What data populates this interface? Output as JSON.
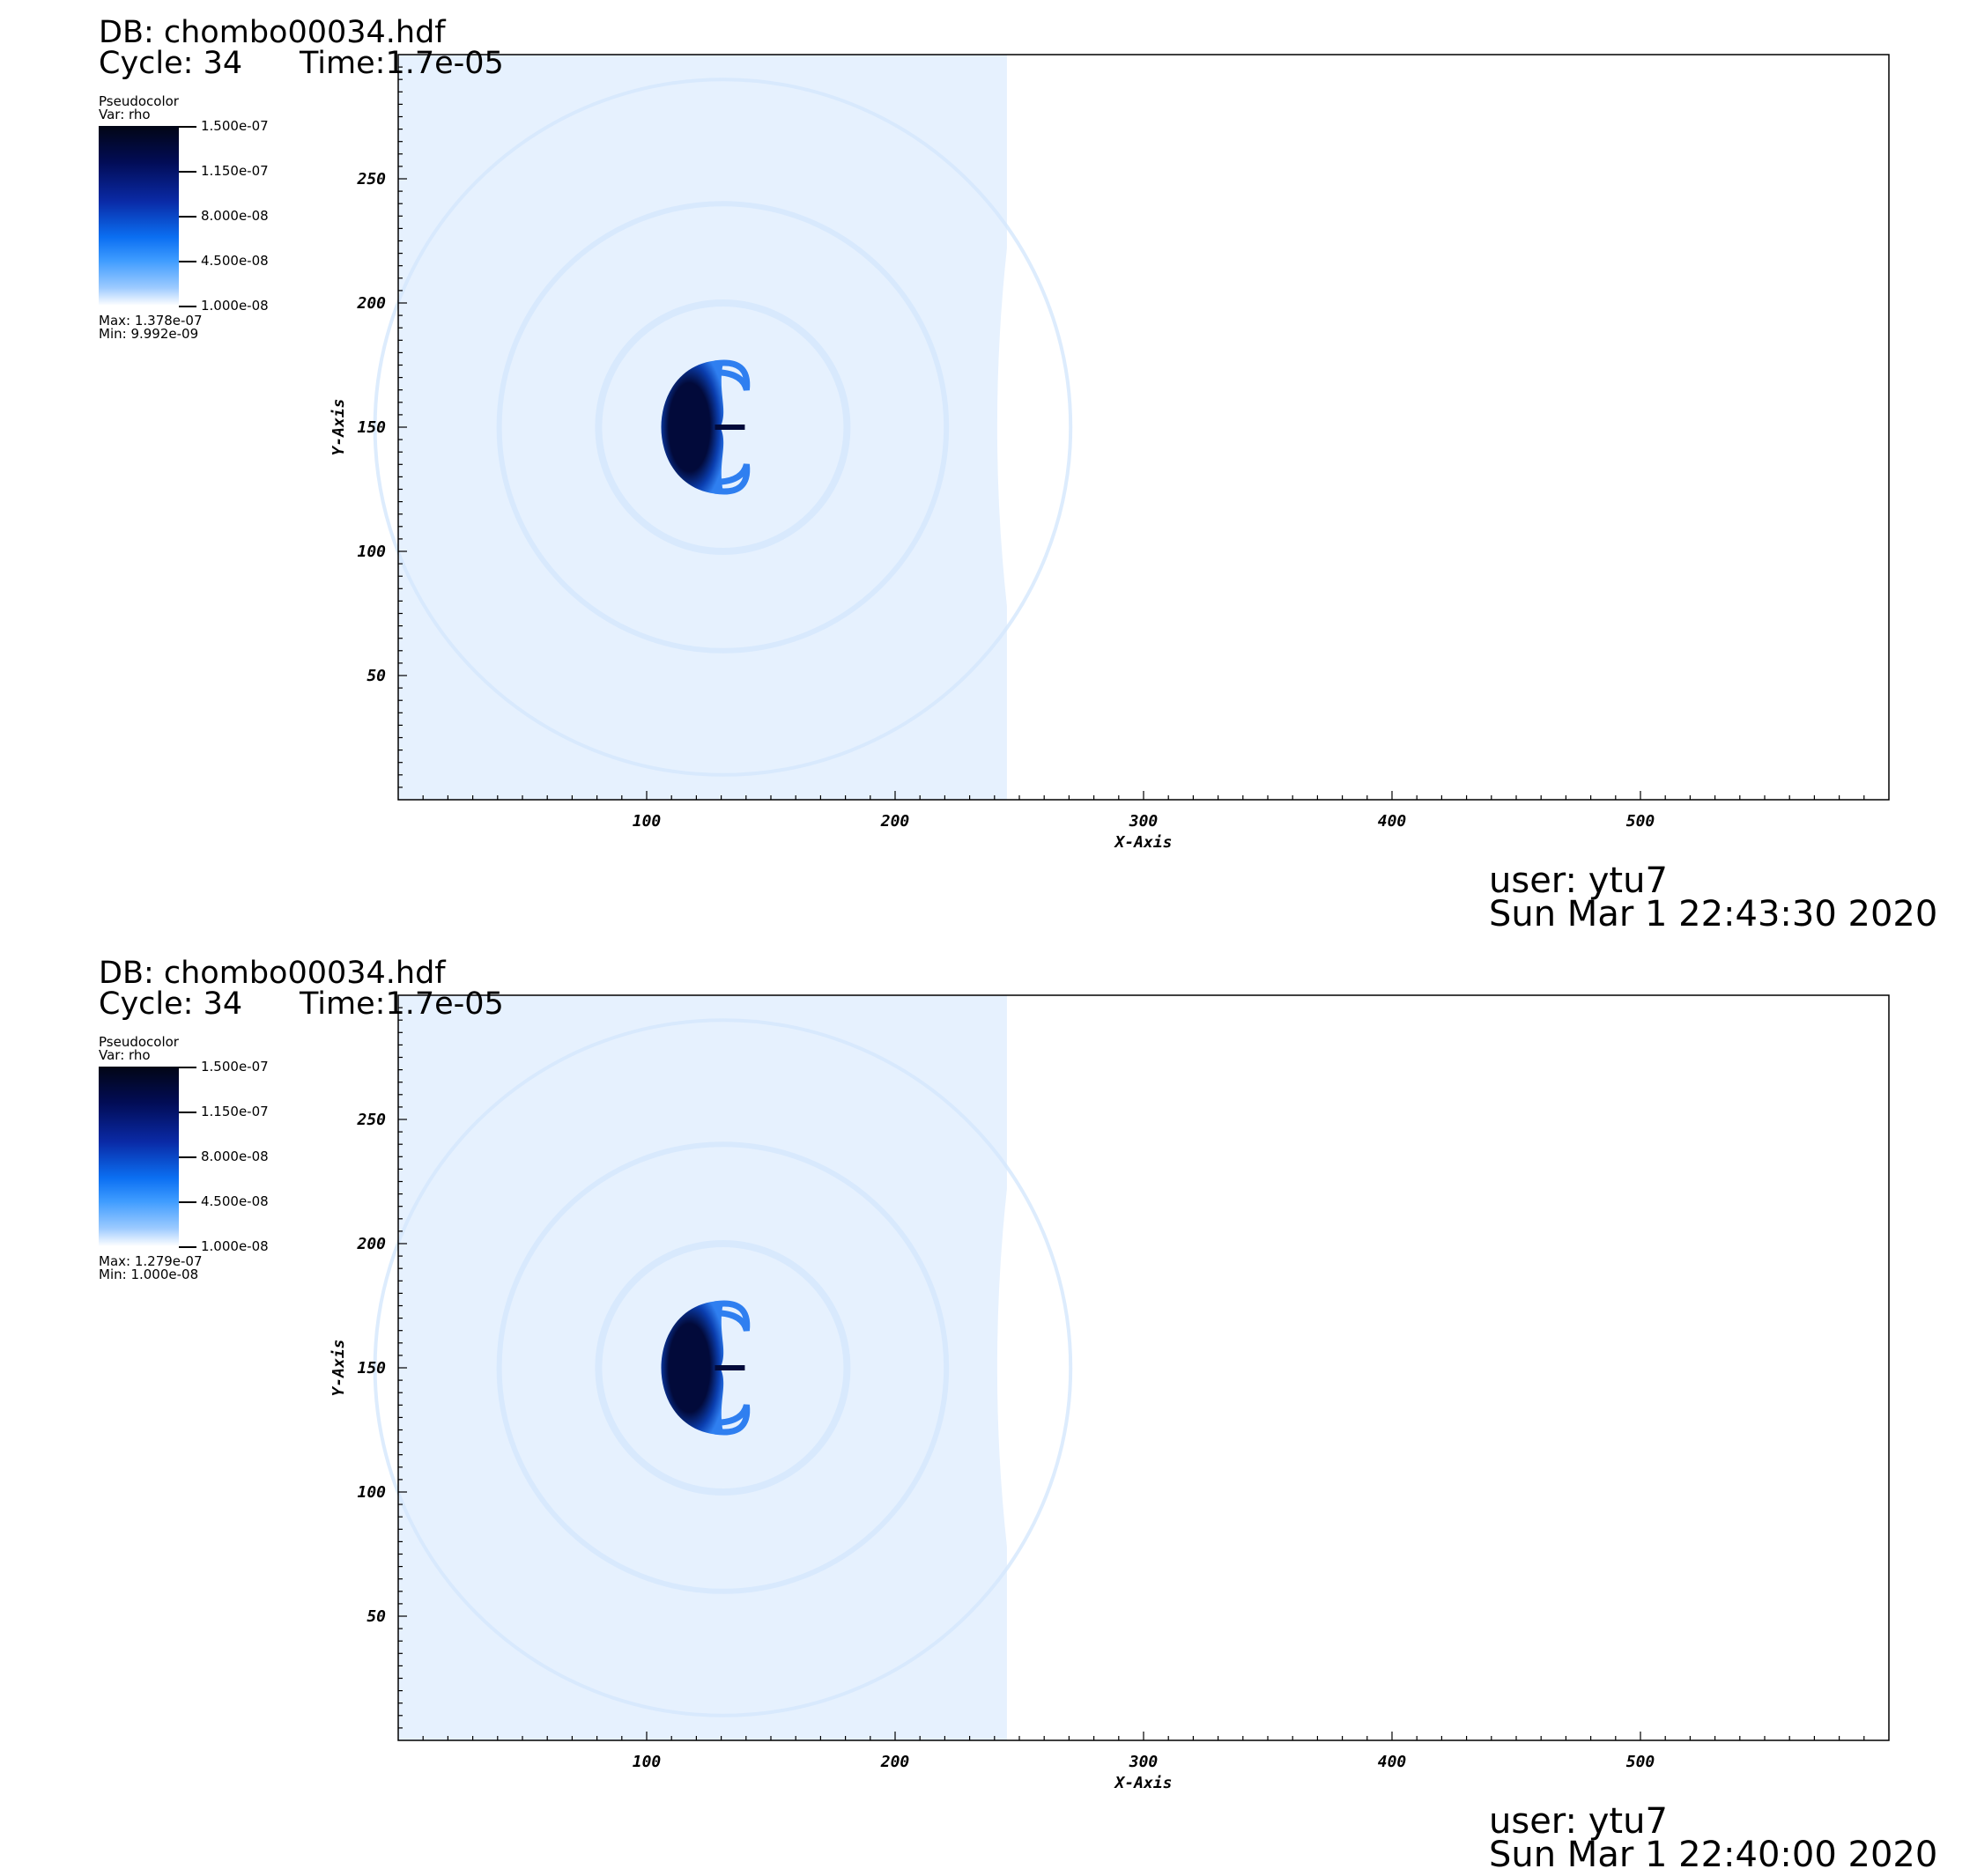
{
  "panels": [
    {
      "db_label": "DB: chombo00034.hdf",
      "cycle_label": "Cycle: 34",
      "time_label": "Time:1.7e-05",
      "legend": {
        "plot_type": "Pseudocolor",
        "var_label": "Var: rho",
        "ticks": [
          "1.500e-07",
          "1.150e-07",
          "8.000e-08",
          "4.500e-08",
          "1.000e-08"
        ],
        "max_label": "Max:  1.378e-07",
        "min_label": "Min:  9.992e-09"
      },
      "user_label": "user: ytu7",
      "date_label": "Sun Mar  1 22:43:30 2020"
    },
    {
      "db_label": "DB: chombo00034.hdf",
      "cycle_label": "Cycle: 34",
      "time_label": "Time:1.7e-05",
      "legend": {
        "plot_type": "Pseudocolor",
        "var_label": "Var: rho",
        "ticks": [
          "1.500e-07",
          "1.150e-07",
          "8.000e-08",
          "4.500e-08",
          "1.000e-08"
        ],
        "max_label": "Max:  1.279e-07",
        "min_label": "Min:  1.000e-08"
      },
      "user_label": "user: ytu7",
      "date_label": "Sun Mar  1 22:40:00 2020"
    }
  ],
  "chart_data": [
    {
      "type": "heatmap",
      "variable": "rho",
      "xlabel": "X-Axis",
      "ylabel": "Y-Axis",
      "xlim": [
        0,
        600
      ],
      "ylim": [
        0,
        300
      ],
      "x_ticks": [
        100,
        200,
        300,
        400,
        500
      ],
      "y_ticks": [
        50,
        100,
        150,
        200,
        250
      ],
      "colorbar_range": [
        1e-08,
        1.5e-07
      ],
      "colors": {
        "background_field": "#e6f1fe",
        "dense_core": "#020a3a",
        "mid": "#0b3fb0",
        "rim": "#2f7ff0"
      },
      "features": {
        "shock_front_x": 245,
        "blob_center": [
          120,
          150
        ],
        "blob_radius_y": 27
      }
    },
    {
      "type": "heatmap",
      "variable": "rho",
      "xlabel": "X-Axis",
      "ylabel": "Y-Axis",
      "xlim": [
        0,
        600
      ],
      "ylim": [
        0,
        300
      ],
      "x_ticks": [
        100,
        200,
        300,
        400,
        500
      ],
      "y_ticks": [
        50,
        100,
        150,
        200,
        250
      ],
      "colorbar_range": [
        1e-08,
        1.5e-07
      ],
      "colors": {
        "background_field": "#e6f1fe",
        "dense_core": "#020a3a",
        "mid": "#0b3fb0",
        "rim": "#2f7ff0"
      },
      "features": {
        "shock_front_x": 245,
        "blob_center": [
          120,
          150
        ],
        "blob_radius_y": 27
      }
    }
  ]
}
